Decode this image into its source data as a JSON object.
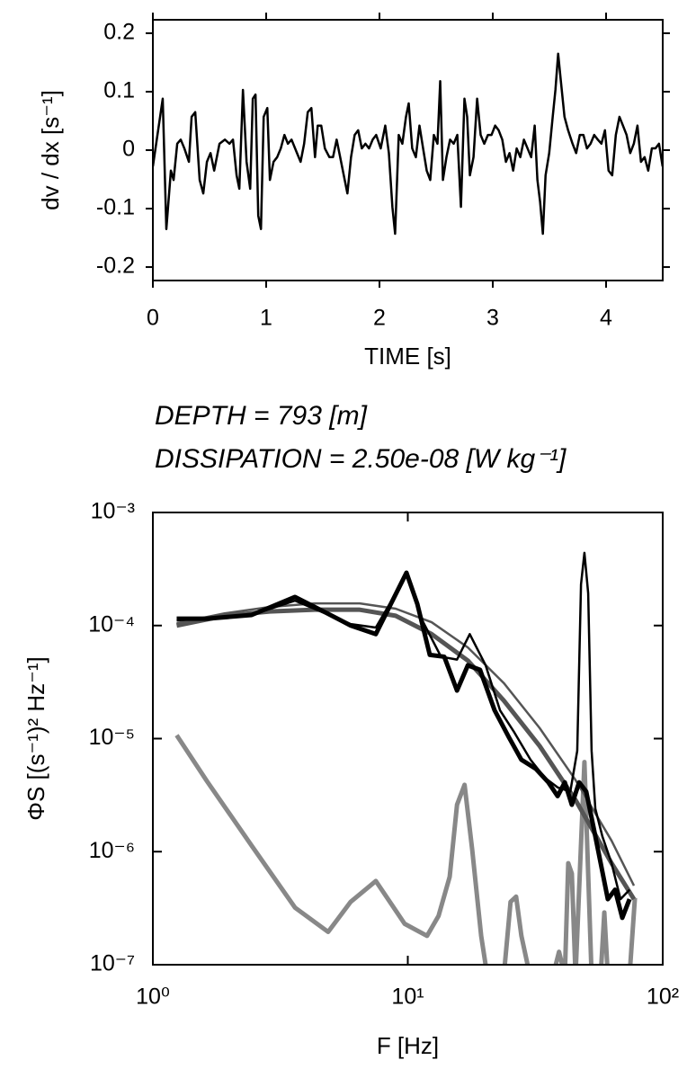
{
  "chart_data": [
    {
      "type": "line",
      "xlabel": "TIME [s]",
      "ylabel": "dv / dx  [s⁻¹]",
      "color": "#000000",
      "xlim": [
        0,
        4.5
      ],
      "xticks": [
        0,
        1,
        2,
        3,
        4
      ],
      "ylim": [
        -0.223,
        0.223
      ],
      "yticks": [
        -0.2,
        -0.1,
        0,
        0.1,
        0.2
      ],
      "x": [
        0,
        0.087,
        0.119,
        0.159,
        0.183,
        0.215,
        0.246,
        0.278,
        0.318,
        0.342,
        0.374,
        0.413,
        0.445,
        0.477,
        0.509,
        0.541,
        0.588,
        0.636,
        0.676,
        0.707,
        0.739,
        0.763,
        0.795,
        0.827,
        0.859,
        0.882,
        0.906,
        0.93,
        0.954,
        0.978,
        1.01,
        1.033,
        1.065,
        1.097,
        1.129,
        1.161,
        1.192,
        1.224,
        1.272,
        1.304,
        1.335,
        1.367,
        1.399,
        1.431,
        1.455,
        1.486,
        1.518,
        1.558,
        1.59,
        1.622,
        1.653,
        1.685,
        1.717,
        1.749,
        1.781,
        1.812,
        1.844,
        1.876,
        1.908,
        1.94,
        1.971,
        2.011,
        2.051,
        2.083,
        2.114,
        2.138,
        2.17,
        2.202,
        2.234,
        2.258,
        2.289,
        2.321,
        2.353,
        2.385,
        2.417,
        2.448,
        2.48,
        2.512,
        2.536,
        2.56,
        2.591,
        2.623,
        2.655,
        2.687,
        2.719,
        2.75,
        2.774,
        2.798,
        2.83,
        2.862,
        2.893,
        2.925,
        2.957,
        2.989,
        3.021,
        3.052,
        3.084,
        3.116,
        3.148,
        3.18,
        3.211,
        3.243,
        3.275,
        3.307,
        3.339,
        3.37,
        3.394,
        3.418,
        3.442,
        3.466,
        3.498,
        3.529,
        3.553,
        3.577,
        3.601,
        3.633,
        3.665,
        3.704,
        3.736,
        3.768,
        3.8,
        3.831,
        3.863,
        3.895,
        3.927,
        3.959,
        3.99,
        4.022,
        4.054,
        4.086,
        4.118,
        4.149,
        4.181,
        4.213,
        4.245,
        4.277,
        4.308,
        4.34,
        4.372,
        4.404,
        4.436,
        4.467,
        4.499
      ],
      "values": [
        -0.028,
        0.088,
        -0.135,
        -0.035,
        -0.051,
        0.011,
        0.018,
        0.003,
        -0.02,
        0.057,
        0.065,
        -0.051,
        -0.074,
        -0.02,
        -0.005,
        -0.035,
        0.011,
        0.018,
        0.011,
        0.018,
        -0.043,
        -0.066,
        0.103,
        -0.02,
        -0.066,
        0.088,
        0.095,
        -0.112,
        -0.135,
        0.057,
        0.072,
        -0.051,
        -0.02,
        -0.012,
        0.003,
        0.026,
        0.011,
        0.018,
        -0.005,
        -0.02,
        0.011,
        0.065,
        0.072,
        -0.012,
        0.042,
        0.042,
        0.003,
        -0.012,
        -0.012,
        0.018,
        -0.012,
        -0.043,
        -0.074,
        -0.012,
        0.026,
        0.034,
        0.003,
        0.011,
        0.003,
        0.018,
        0.026,
        0.003,
        0.042,
        -0.005,
        -0.097,
        -0.143,
        0.026,
        0.011,
        0.057,
        0.08,
        0.003,
        -0.012,
        0.042,
        0.003,
        -0.035,
        -0.051,
        0.026,
        0.011,
        0.118,
        -0.051,
        -0.012,
        0.018,
        0.011,
        0.026,
        -0.097,
        0.088,
        0.057,
        -0.043,
        -0.012,
        0.088,
        0.026,
        0.011,
        0.026,
        0.026,
        0.042,
        0.034,
        0.018,
        -0.02,
        -0.005,
        -0.035,
        0.003,
        -0.012,
        0.018,
        0.003,
        -0.012,
        0.042,
        -0.051,
        -0.089,
        -0.143,
        -0.043,
        -0.005,
        0.057,
        0.103,
        0.165,
        0.118,
        0.057,
        0.034,
        0.011,
        -0.005,
        0.026,
        0.026,
        0.003,
        0.011,
        0.026,
        0.018,
        0.011,
        0.034,
        -0.035,
        -0.043,
        0.026,
        0.057,
        0.042,
        0.026,
        -0.005,
        0.011,
        0.042,
        -0.02,
        -0.012,
        -0.035,
        0.003,
        0.003,
        0.011,
        -0.028
      ]
    },
    {
      "type": "line",
      "annotations": [
        "DEPTH = 793 [m]",
        "DISSIPATION = 2.50e-08 [W kg⁻¹]"
      ],
      "xlabel": "F [Hz]",
      "ylabel": "ΦS [(s⁻¹)² Hz⁻¹]",
      "xscale": "log",
      "yscale": "log",
      "xlim": [
        1,
        100
      ],
      "xticks": [
        {
          "value": 1,
          "label": "10⁰"
        },
        {
          "value": 10,
          "label": "10¹"
        },
        {
          "value": 100,
          "label": "10²"
        }
      ],
      "ylim": [
        1e-07,
        0.001
      ],
      "yticks": [
        {
          "value": 1e-07,
          "label": "10⁻⁷"
        },
        {
          "value": 1e-06,
          "label": "10⁻⁶"
        },
        {
          "value": 1e-05,
          "label": "10⁻⁵"
        },
        {
          "value": 0.0001,
          "label": "10⁻⁴"
        },
        {
          "value": 0.001,
          "label": "10⁻³"
        }
      ],
      "series": [
        {
          "color": "#888888",
          "width": 5,
          "x": [
            1.24,
            1.63,
            2.44,
            3.61,
            4.87,
            5.97,
            7.49,
            9.72,
            11.9,
            13.2,
            14.6,
            15.6,
            16.7,
            17.9,
            19.4,
            20.5,
            23.8,
            25.3,
            26.6,
            27.9,
            29.8,
            37.1,
            39.2,
            41.3,
            42.6,
            44.0,
            45.5,
            49.3,
            52.6,
            57.1,
            59.0,
            60.9,
            74.1,
            77.8
          ],
          "values": [
            1.07e-05,
            4.2e-06,
            1.13e-06,
            3.2e-07,
            1.95e-07,
            3.6e-07,
            5.5e-07,
            2.3e-07,
            1.8e-07,
            2.7e-07,
            6e-07,
            2.6e-06,
            3.9e-06,
            1.03e-06,
            1.8e-07,
            8e-08,
            8e-08,
            3.6e-07,
            4e-07,
            1.8e-07,
            9e-08,
            8e-08,
            1.3e-07,
            8e-08,
            7.9e-07,
            6.4e-07,
            8e-08,
            6.2e-06,
            8e-08,
            8e-08,
            2.9e-07,
            8e-08,
            8e-08,
            3.9e-07
          ]
        },
        {
          "color": "#555555",
          "width": 5,
          "x": [
            1.24,
            1.91,
            2.87,
            4.31,
            6.48,
            8.96,
            12.4,
            17.2,
            23.8,
            32.9,
            45.5,
            63.0,
            77.1
          ],
          "values": [
            0.0001,
            0.000122,
            0.000133,
            0.000138,
            0.000138,
            0.000122,
            8.4e-05,
            4.9e-05,
            2.17e-05,
            8.6e-06,
            2.86e-06,
            7.9e-07,
            3.8e-07
          ]
        },
        {
          "color": "#555555",
          "width": 2.5,
          "x": [
            1.24,
            1.91,
            2.87,
            4.31,
            6.48,
            8.96,
            12.4,
            17.2,
            23.8,
            32.9,
            45.5,
            63.0,
            77.1
          ],
          "values": [
            0.000105,
            0.000128,
            0.000146,
            0.000157,
            0.000157,
            0.000141,
            0.000107,
            6.4e-05,
            3.1e-05,
            1.24e-05,
            4.3e-06,
            1.25e-06,
            5e-07
          ]
        },
        {
          "color": "#000000",
          "width": 2.5,
          "x": [
            1.24,
            2.44,
            3.61,
            5.97,
            7.49,
            9.88,
            11.4,
            13.5,
            15.6,
            17.5,
            20.2,
            23.0,
            26.2,
            30.3,
            34.5,
            38.7,
            43.4,
            46.2,
            47.8,
            49.3,
            51.0,
            52.6,
            54.4,
            58.0,
            63.0,
            68.3,
            74.1
          ],
          "values": [
            0.000111,
            0.000124,
            0.000166,
            0.000103,
            9.6e-05,
            0.000278,
            0.000111,
            5.3e-05,
            5e-05,
            8.4e-05,
            4.45e-05,
            1.78e-05,
            1.13e-05,
            6.5e-06,
            4.5e-06,
            3.7e-06,
            3.4e-06,
            7.8e-06,
            0.000231,
            0.00044,
            0.000193,
            7.8e-06,
            2.4e-06,
            1.36e-06,
            7.9e-07,
            3.8e-07,
            4.6e-07
          ]
        },
        {
          "color": "#000000",
          "width": 5,
          "x": [
            1.24,
            1.63,
            2.44,
            3.61,
            4.68,
            5.97,
            7.49,
            9.88,
            10.9,
            12.2,
            13.9,
            15.6,
            17.2,
            19.2,
            21.9,
            24.9,
            27.9,
            31.8,
            35.6,
            38.7,
            41.3,
            44.0,
            47.0,
            50.1,
            53.5,
            57.1,
            60.9,
            65.0,
            69.4,
            74.1
          ],
          "values": [
            0.000115,
            0.000115,
            0.000124,
            0.000179,
            0.000133,
            0.0001,
            8.4e-05,
            0.000293,
            0.000155,
            5.5e-05,
            5.3e-05,
            2.66e-05,
            4.45e-05,
            4.06e-05,
            1.78e-05,
            1.03e-05,
            6.5e-06,
            5.4e-06,
            4.1e-06,
            3.1e-06,
            4.1e-06,
            2.6e-06,
            4.1e-06,
            3.4e-06,
            1.65e-06,
            7.9e-07,
            3.8e-07,
            4.6e-07,
            2.6e-07,
            3.8e-07
          ]
        }
      ]
    }
  ]
}
